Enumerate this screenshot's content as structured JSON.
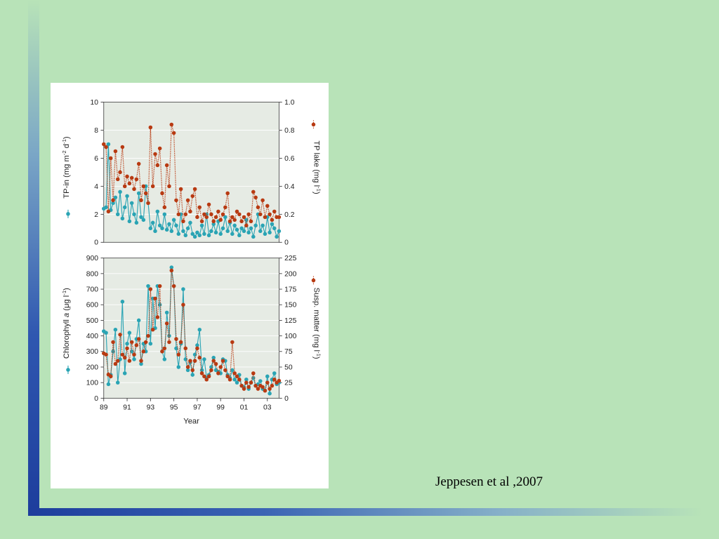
{
  "credit": "Jeppesen et al ,2007",
  "colors": {
    "tp_in": "#2aa4b4",
    "tp_lake": "#b83a12",
    "panel_bg": "#e6ebe4",
    "grid": "#ffffff"
  },
  "chart_data": [
    {
      "type": "line",
      "panel": "top",
      "title": "",
      "xlabel": "",
      "xlim": [
        1989,
        2004
      ],
      "y_left": {
        "label": "TP-in (mg m-2 d-1)",
        "ylim": [
          0,
          10
        ],
        "ticks": [
          "0",
          "2",
          "4",
          "6",
          "8",
          "10"
        ]
      },
      "y_right": {
        "label": "TP lake (mg l-1)",
        "ylim": [
          0,
          1.0
        ],
        "ticks": [
          "0",
          "0.2",
          "0.4",
          "0.6",
          "0.8",
          "1.0"
        ]
      },
      "grid": true,
      "series": [
        {
          "name": "TP-in",
          "axis": "left",
          "style": "solid",
          "color": "#2aa4b4",
          "x": [
            1989.0,
            1989.2,
            1989.4,
            1989.6,
            1989.8,
            1990.0,
            1990.2,
            1990.4,
            1990.6,
            1990.8,
            1991.0,
            1991.2,
            1991.4,
            1991.6,
            1991.8,
            1992.0,
            1992.2,
            1992.4,
            1992.6,
            1992.8,
            1993.0,
            1993.2,
            1993.4,
            1993.6,
            1993.8,
            1994.0,
            1994.2,
            1994.4,
            1994.6,
            1994.8,
            1995.0,
            1995.2,
            1995.4,
            1995.6,
            1995.8,
            1996.0,
            1996.2,
            1996.4,
            1996.6,
            1996.8,
            1997.0,
            1997.2,
            1997.4,
            1997.6,
            1997.8,
            1998.0,
            1998.2,
            1998.4,
            1998.6,
            1998.8,
            1999.0,
            1999.2,
            1999.4,
            1999.6,
            1999.8,
            2000.0,
            2000.2,
            2000.4,
            2000.6,
            2000.8,
            2001.0,
            2001.2,
            2001.4,
            2001.6,
            2001.8,
            2002.0,
            2002.2,
            2002.4,
            2002.6,
            2002.8,
            2003.0,
            2003.2,
            2003.4,
            2003.6,
            2003.8,
            2004.0
          ],
          "y": [
            2.4,
            2.5,
            7.0,
            2.3,
            2.8,
            3.2,
            2.0,
            3.6,
            1.7,
            2.5,
            3.3,
            1.5,
            2.8,
            2.0,
            1.4,
            3.5,
            1.8,
            1.6,
            4.0,
            2.8,
            1.0,
            1.4,
            0.8,
            2.2,
            1.2,
            1.0,
            2.0,
            0.9,
            1.3,
            0.8,
            1.6,
            1.2,
            0.6,
            2.0,
            0.8,
            0.5,
            1.0,
            1.4,
            0.6,
            0.4,
            0.7,
            0.5,
            1.2,
            0.6,
            2.0,
            0.5,
            0.8,
            1.3,
            0.7,
            1.5,
            0.6,
            1.0,
            1.8,
            0.8,
            1.4,
            0.6,
            1.2,
            0.9,
            0.5,
            1.0,
            0.8,
            1.6,
            0.7,
            1.0,
            0.4,
            1.2,
            2.0,
            0.8,
            1.2,
            0.6,
            1.8,
            0.7,
            1.3,
            1.0,
            0.4,
            0.8
          ]
        },
        {
          "name": "TP lake",
          "axis": "right",
          "style": "dotted",
          "color": "#b83a12",
          "x": [
            1989.0,
            1989.2,
            1989.4,
            1989.6,
            1989.8,
            1990.0,
            1990.2,
            1990.4,
            1990.6,
            1990.8,
            1991.0,
            1991.2,
            1991.4,
            1991.6,
            1991.8,
            1992.0,
            1992.2,
            1992.4,
            1992.6,
            1992.8,
            1993.0,
            1993.2,
            1993.4,
            1993.6,
            1993.8,
            1994.0,
            1994.2,
            1994.4,
            1994.6,
            1994.8,
            1995.0,
            1995.2,
            1995.4,
            1995.6,
            1995.8,
            1996.0,
            1996.2,
            1996.4,
            1996.6,
            1996.8,
            1997.0,
            1997.2,
            1997.4,
            1997.6,
            1997.8,
            1998.0,
            1998.2,
            1998.4,
            1998.6,
            1998.8,
            1999.0,
            1999.2,
            1999.4,
            1999.6,
            1999.8,
            2000.0,
            2000.2,
            2000.4,
            2000.6,
            2000.8,
            2001.0,
            2001.2,
            2001.4,
            2001.6,
            2001.8,
            2002.0,
            2002.2,
            2002.4,
            2002.6,
            2002.8,
            2003.0,
            2003.2,
            2003.4,
            2003.6,
            2003.8,
            2004.0
          ],
          "y": [
            0.7,
            0.68,
            0.22,
            0.6,
            0.3,
            0.65,
            0.45,
            0.5,
            0.68,
            0.4,
            0.47,
            0.42,
            0.46,
            0.38,
            0.45,
            0.56,
            0.3,
            0.4,
            0.35,
            0.28,
            0.82,
            0.4,
            0.63,
            0.55,
            0.67,
            0.35,
            0.25,
            0.55,
            0.4,
            0.84,
            0.78,
            0.3,
            0.2,
            0.38,
            0.15,
            0.2,
            0.3,
            0.22,
            0.33,
            0.38,
            0.18,
            0.25,
            0.15,
            0.2,
            0.18,
            0.27,
            0.2,
            0.15,
            0.18,
            0.22,
            0.16,
            0.2,
            0.25,
            0.35,
            0.15,
            0.18,
            0.16,
            0.22,
            0.2,
            0.15,
            0.18,
            0.12,
            0.2,
            0.15,
            0.36,
            0.32,
            0.25,
            0.2,
            0.3,
            0.18,
            0.26,
            0.2,
            0.16,
            0.22,
            0.18,
            0.18
          ]
        }
      ]
    },
    {
      "type": "line",
      "panel": "bottom",
      "title": "",
      "xlabel": "Year",
      "xlim": [
        1989,
        2004
      ],
      "x_ticks": [
        "89",
        "91",
        "93",
        "95",
        "97",
        "99",
        "01",
        "03"
      ],
      "y_left": {
        "label": "Chlorophyll a (μg l-1)",
        "ylim": [
          0,
          900
        ],
        "ticks": [
          "0",
          "100",
          "200",
          "300",
          "400",
          "500",
          "600",
          "700",
          "800",
          "900"
        ]
      },
      "y_right": {
        "label": "Susp. matter (mg l-1)",
        "ylim": [
          0,
          225
        ],
        "ticks": [
          "0",
          "25",
          "50",
          "75",
          "100",
          "125",
          "150",
          "175",
          "200",
          "225"
        ]
      },
      "grid": true,
      "series": [
        {
          "name": "Chlorophyll a",
          "axis": "left",
          "style": "solid",
          "color": "#2aa4b4",
          "x": [
            1989.0,
            1989.2,
            1989.4,
            1989.6,
            1989.8,
            1990.0,
            1990.2,
            1990.4,
            1990.6,
            1990.8,
            1991.0,
            1991.2,
            1991.4,
            1991.6,
            1991.8,
            1992.0,
            1992.2,
            1992.4,
            1992.6,
            1992.8,
            1993.0,
            1993.2,
            1993.4,
            1993.6,
            1993.8,
            1994.0,
            1994.2,
            1994.4,
            1994.6,
            1994.8,
            1995.0,
            1995.2,
            1995.4,
            1995.6,
            1995.8,
            1996.0,
            1996.2,
            1996.4,
            1996.6,
            1996.8,
            1997.0,
            1997.2,
            1997.4,
            1997.6,
            1997.8,
            1998.0,
            1998.2,
            1998.4,
            1998.6,
            1998.8,
            1999.0,
            1999.2,
            1999.4,
            1999.6,
            1999.8,
            2000.0,
            2000.2,
            2000.4,
            2000.6,
            2000.8,
            2001.0,
            2001.2,
            2001.4,
            2001.6,
            2001.8,
            2002.0,
            2002.2,
            2002.4,
            2002.6,
            2002.8,
            2003.0,
            2003.2,
            2003.4,
            2003.6,
            2003.8,
            2004.0
          ],
          "y": [
            430,
            420,
            90,
            150,
            300,
            440,
            100,
            250,
            620,
            160,
            350,
            420,
            300,
            250,
            380,
            500,
            220,
            350,
            300,
            720,
            350,
            640,
            450,
            720,
            600,
            300,
            250,
            550,
            400,
            840,
            720,
            320,
            200,
            350,
            700,
            250,
            180,
            230,
            150,
            280,
            340,
            440,
            180,
            250,
            130,
            150,
            200,
            260,
            180,
            170,
            160,
            250,
            240,
            150,
            130,
            180,
            120,
            100,
            150,
            80,
            70,
            120,
            60,
            100,
            130,
            80,
            90,
            110,
            60,
            50,
            140,
            30,
            120,
            160,
            90,
            100
          ]
        },
        {
          "name": "Susp. matter",
          "axis": "right",
          "style": "dotted",
          "color": "#b83a12",
          "x": [
            1989.0,
            1989.2,
            1989.4,
            1989.6,
            1989.8,
            1990.0,
            1990.2,
            1990.4,
            1990.6,
            1990.8,
            1991.0,
            1991.2,
            1991.4,
            1991.6,
            1991.8,
            1992.0,
            1992.2,
            1992.4,
            1992.6,
            1992.8,
            1993.0,
            1993.2,
            1993.4,
            1993.6,
            1993.8,
            1994.0,
            1994.2,
            1994.4,
            1994.6,
            1994.8,
            1995.0,
            1995.2,
            1995.4,
            1995.6,
            1995.8,
            1996.0,
            1996.2,
            1996.4,
            1996.6,
            1996.8,
            1997.0,
            1997.2,
            1997.4,
            1997.6,
            1997.8,
            1998.0,
            1998.2,
            1998.4,
            1998.6,
            1998.8,
            1999.0,
            1999.2,
            1999.4,
            1999.6,
            1999.8,
            2000.0,
            2000.2,
            2000.4,
            2000.6,
            2000.8,
            2001.0,
            2001.2,
            2001.4,
            2001.6,
            2001.8,
            2002.0,
            2002.2,
            2002.4,
            2002.6,
            2002.8,
            2003.0,
            2003.2,
            2003.4,
            2003.6,
            2003.8,
            2004.0
          ],
          "y": [
            72,
            70,
            38,
            35,
            90,
            55,
            60,
            102,
            70,
            65,
            80,
            60,
            90,
            70,
            85,
            95,
            60,
            75,
            90,
            100,
            175,
            110,
            160,
            130,
            180,
            75,
            80,
            120,
            90,
            205,
            180,
            95,
            70,
            90,
            150,
            80,
            50,
            60,
            45,
            60,
            80,
            65,
            40,
            35,
            30,
            35,
            45,
            60,
            55,
            40,
            50,
            60,
            45,
            35,
            30,
            90,
            40,
            35,
            30,
            20,
            15,
            25,
            18,
            25,
            40,
            20,
            15,
            20,
            18,
            12,
            25,
            15,
            20,
            30,
            25,
            28
          ]
        }
      ]
    }
  ]
}
